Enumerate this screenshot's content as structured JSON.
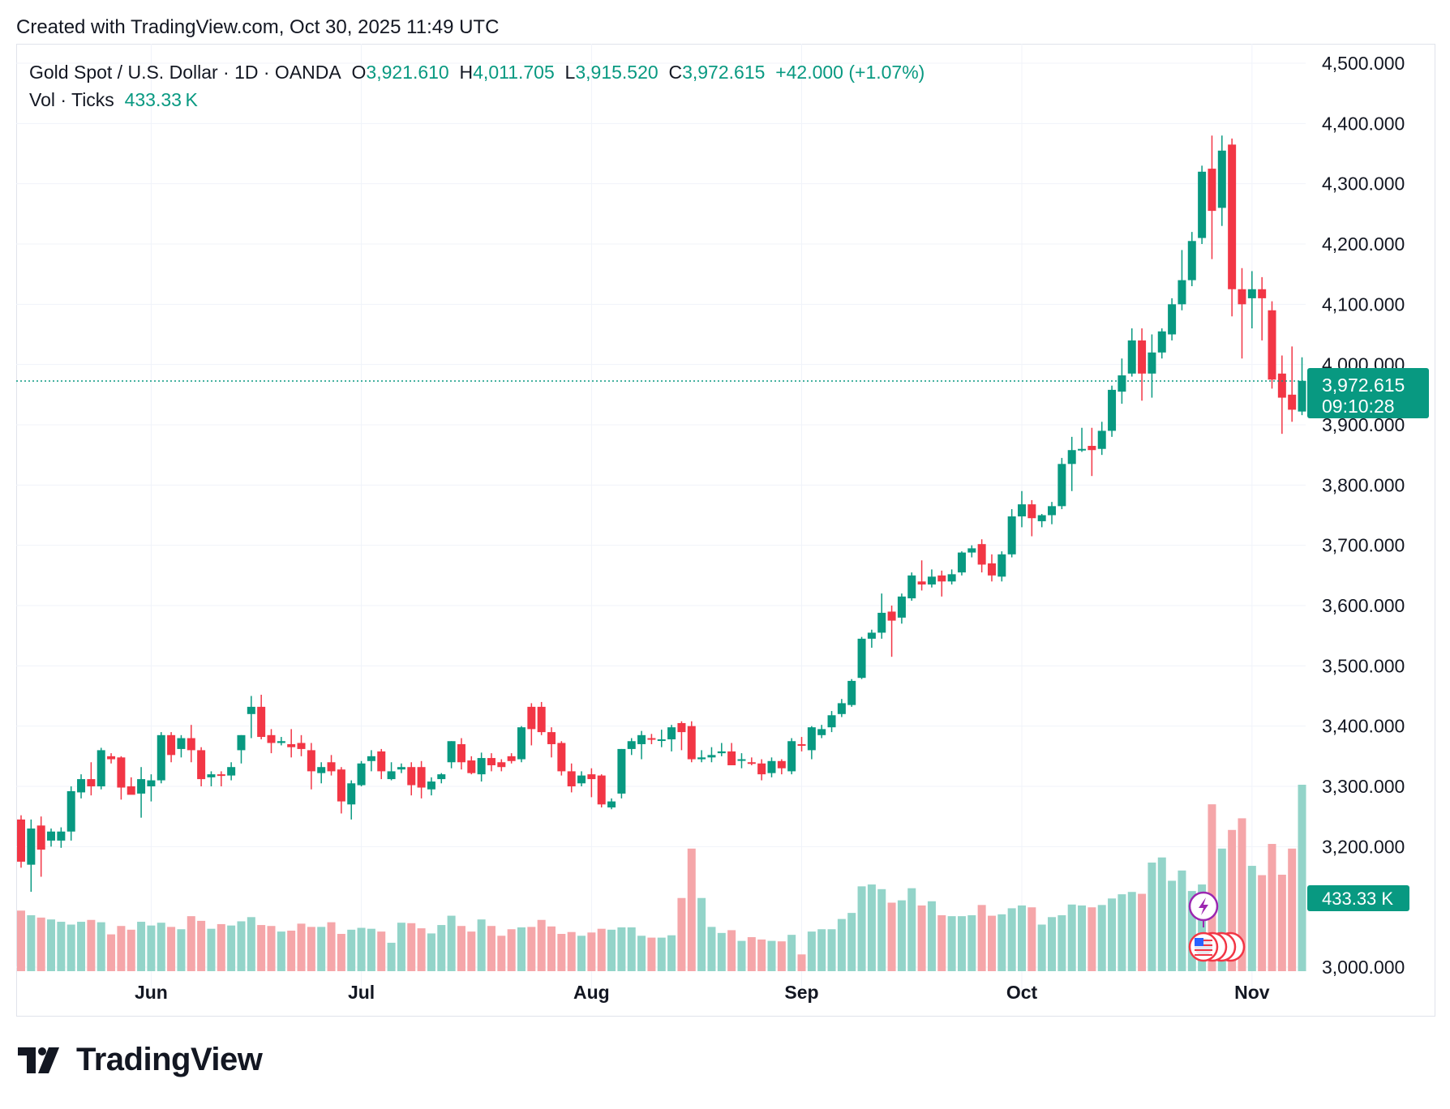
{
  "header": {
    "created_with": "Created with TradingView.com, Oct 30, 2025 11:49 UTC"
  },
  "legend": {
    "symbol": "Gold Spot / U.S. Dollar · 1D · OANDA",
    "o_label": "O",
    "o_value": "3,921.610",
    "h_label": "H",
    "h_value": "4,011.705",
    "l_label": "L",
    "l_value": "3,915.520",
    "c_label": "C",
    "c_value": "3,972.615",
    "change": "+42.000 (+1.07%)",
    "vol_label": "Vol · Ticks",
    "vol_value": "433.33 K"
  },
  "price_badge": {
    "price": "3,972.615",
    "countdown": "09:10:28"
  },
  "volume_badge": "433.33 K",
  "footer": {
    "brand": "TradingView"
  },
  "colors": {
    "up": "#089981",
    "down": "#f23645",
    "up_vol": "#93d4c9",
    "down_vol": "#f5a6a9",
    "grid": "#f0f3fa"
  },
  "chart_data": {
    "type": "candlestick",
    "title": "Gold Spot / U.S. Dollar · 1D · OANDA",
    "ylim": [
      3000,
      4500
    ],
    "y_ticks": [
      "4,500.000",
      "4,400.000",
      "4,300.000",
      "4,200.000",
      "4,100.000",
      "4,000.000",
      "3,900.000",
      "3,800.000",
      "3,700.000",
      "3,600.000",
      "3,500.000",
      "3,400.000",
      "3,300.000",
      "3,200.000",
      "3,000.000"
    ],
    "y_tick_values": [
      4500,
      4400,
      4300,
      4200,
      4100,
      4000,
      3900,
      3800,
      3700,
      3600,
      3500,
      3400,
      3300,
      3200,
      3000
    ],
    "x_labels": [
      {
        "label": "Jun",
        "index": 13
      },
      {
        "label": "Jul",
        "index": 34
      },
      {
        "label": "Aug",
        "index": 57
      },
      {
        "label": "Sep",
        "index": 78
      },
      {
        "label": "Oct",
        "index": 100
      },
      {
        "label": "Nov",
        "index": 123
      }
    ],
    "last_price": 3972.615,
    "volume_max": 400000,
    "candles": [
      {
        "o": 3245,
        "h": 3252,
        "l": 3165,
        "c": 3175,
        "v": 130000
      },
      {
        "o": 3170,
        "h": 3245,
        "l": 3125,
        "c": 3230,
        "v": 120000
      },
      {
        "o": 3235,
        "h": 3250,
        "l": 3150,
        "c": 3195,
        "v": 115000
      },
      {
        "o": 3210,
        "h": 3230,
        "l": 3200,
        "c": 3225,
        "v": 111000
      },
      {
        "o": 3210,
        "h": 3232,
        "l": 3198,
        "c": 3225,
        "v": 106000
      },
      {
        "o": 3225,
        "h": 3300,
        "l": 3210,
        "c": 3292,
        "v": 100000
      },
      {
        "o": 3290,
        "h": 3320,
        "l": 3280,
        "c": 3312,
        "v": 106000
      },
      {
        "o": 3312,
        "h": 3340,
        "l": 3285,
        "c": 3300,
        "v": 110000
      },
      {
        "o": 3300,
        "h": 3364,
        "l": 3295,
        "c": 3360,
        "v": 105000
      },
      {
        "o": 3350,
        "h": 3355,
        "l": 3338,
        "c": 3345,
        "v": 79000
      },
      {
        "o": 3348,
        "h": 3350,
        "l": 3278,
        "c": 3298,
        "v": 97000
      },
      {
        "o": 3300,
        "h": 3315,
        "l": 3290,
        "c": 3286,
        "v": 89000
      },
      {
        "o": 3288,
        "h": 3332,
        "l": 3248,
        "c": 3312,
        "v": 106000
      },
      {
        "o": 3300,
        "h": 3320,
        "l": 3275,
        "c": 3310,
        "v": 98000
      },
      {
        "o": 3310,
        "h": 3390,
        "l": 3305,
        "c": 3385,
        "v": 104000
      },
      {
        "o": 3385,
        "h": 3390,
        "l": 3340,
        "c": 3352,
        "v": 95000
      },
      {
        "o": 3362,
        "h": 3385,
        "l": 3348,
        "c": 3380,
        "v": 90000
      },
      {
        "o": 3380,
        "h": 3402,
        "l": 3340,
        "c": 3360,
        "v": 118000
      },
      {
        "o": 3360,
        "h": 3365,
        "l": 3300,
        "c": 3312,
        "v": 108000
      },
      {
        "o": 3315,
        "h": 3325,
        "l": 3300,
        "c": 3320,
        "v": 91000
      },
      {
        "o": 3320,
        "h": 3325,
        "l": 3300,
        "c": 3318,
        "v": 101000
      },
      {
        "o": 3318,
        "h": 3340,
        "l": 3310,
        "c": 3332,
        "v": 98000
      },
      {
        "o": 3360,
        "h": 3385,
        "l": 3338,
        "c": 3385,
        "v": 107000
      },
      {
        "o": 3420,
        "h": 3450,
        "l": 3380,
        "c": 3432,
        "v": 116000
      },
      {
        "o": 3432,
        "h": 3452,
        "l": 3378,
        "c": 3382,
        "v": 99000
      },
      {
        "o": 3385,
        "h": 3395,
        "l": 3355,
        "c": 3372,
        "v": 97000
      },
      {
        "o": 3372,
        "h": 3382,
        "l": 3368,
        "c": 3375,
        "v": 85000
      },
      {
        "o": 3370,
        "h": 3395,
        "l": 3348,
        "c": 3365,
        "v": 87000
      },
      {
        "o": 3372,
        "h": 3385,
        "l": 3350,
        "c": 3362,
        "v": 102000
      },
      {
        "o": 3360,
        "h": 3372,
        "l": 3295,
        "c": 3325,
        "v": 95000
      },
      {
        "o": 3322,
        "h": 3340,
        "l": 3305,
        "c": 3332,
        "v": 95000
      },
      {
        "o": 3340,
        "h": 3352,
        "l": 3318,
        "c": 3325,
        "v": 105000
      },
      {
        "o": 3328,
        "h": 3332,
        "l": 3255,
        "c": 3275,
        "v": 80000
      },
      {
        "o": 3270,
        "h": 3310,
        "l": 3245,
        "c": 3305,
        "v": 89000
      },
      {
        "o": 3302,
        "h": 3342,
        "l": 3300,
        "c": 3338,
        "v": 93000
      },
      {
        "o": 3342,
        "h": 3360,
        "l": 3325,
        "c": 3350,
        "v": 91000
      },
      {
        "o": 3358,
        "h": 3362,
        "l": 3312,
        "c": 3325,
        "v": 85000
      },
      {
        "o": 3312,
        "h": 3340,
        "l": 3310,
        "c": 3325,
        "v": 61000
      },
      {
        "o": 3328,
        "h": 3338,
        "l": 3322,
        "c": 3332,
        "v": 104000
      },
      {
        "o": 3332,
        "h": 3340,
        "l": 3285,
        "c": 3302,
        "v": 103000
      },
      {
        "o": 3332,
        "h": 3342,
        "l": 3280,
        "c": 3298,
        "v": 92000
      },
      {
        "o": 3295,
        "h": 3315,
        "l": 3285,
        "c": 3308,
        "v": 81000
      },
      {
        "o": 3312,
        "h": 3322,
        "l": 3305,
        "c": 3320,
        "v": 99000
      },
      {
        "o": 3340,
        "h": 3375,
        "l": 3330,
        "c": 3375,
        "v": 119000
      },
      {
        "o": 3370,
        "h": 3380,
        "l": 3328,
        "c": 3340,
        "v": 97000
      },
      {
        "o": 3343,
        "h": 3350,
        "l": 3320,
        "c": 3322,
        "v": 85000
      },
      {
        "o": 3320,
        "h": 3356,
        "l": 3308,
        "c": 3347,
        "v": 111000
      },
      {
        "o": 3347,
        "h": 3355,
        "l": 3325,
        "c": 3335,
        "v": 97000
      },
      {
        "o": 3340,
        "h": 3345,
        "l": 3325,
        "c": 3332,
        "v": 76000
      },
      {
        "o": 3350,
        "h": 3355,
        "l": 3338,
        "c": 3342,
        "v": 90000
      },
      {
        "o": 3345,
        "h": 3400,
        "l": 3340,
        "c": 3398,
        "v": 94000
      },
      {
        "o": 3432,
        "h": 3438,
        "l": 3368,
        "c": 3395,
        "v": 95000
      },
      {
        "o": 3432,
        "h": 3440,
        "l": 3385,
        "c": 3390,
        "v": 110000
      },
      {
        "o": 3390,
        "h": 3398,
        "l": 3348,
        "c": 3370,
        "v": 96000
      },
      {
        "o": 3372,
        "h": 3375,
        "l": 3318,
        "c": 3325,
        "v": 80000
      },
      {
        "o": 3325,
        "h": 3338,
        "l": 3290,
        "c": 3300,
        "v": 84000
      },
      {
        "o": 3305,
        "h": 3325,
        "l": 3300,
        "c": 3318,
        "v": 76000
      },
      {
        "o": 3320,
        "h": 3330,
        "l": 3282,
        "c": 3312,
        "v": 83000
      },
      {
        "o": 3318,
        "h": 3320,
        "l": 3265,
        "c": 3270,
        "v": 91000
      },
      {
        "o": 3265,
        "h": 3280,
        "l": 3262,
        "c": 3275,
        "v": 89000
      },
      {
        "o": 3288,
        "h": 3362,
        "l": 3280,
        "c": 3362,
        "v": 94000
      },
      {
        "o": 3362,
        "h": 3380,
        "l": 3352,
        "c": 3375,
        "v": 94000
      },
      {
        "o": 3370,
        "h": 3392,
        "l": 3345,
        "c": 3385,
        "v": 76000
      },
      {
        "o": 3380,
        "h": 3387,
        "l": 3370,
        "c": 3378,
        "v": 72000
      },
      {
        "o": 3378,
        "h": 3394,
        "l": 3365,
        "c": 3378,
        "v": 72000
      },
      {
        "o": 3378,
        "h": 3402,
        "l": 3358,
        "c": 3398,
        "v": 77000
      },
      {
        "o": 3405,
        "h": 3408,
        "l": 3360,
        "c": 3390,
        "v": 157000
      },
      {
        "o": 3400,
        "h": 3408,
        "l": 3340,
        "c": 3345,
        "v": 263000
      },
      {
        "o": 3345,
        "h": 3360,
        "l": 3340,
        "c": 3348,
        "v": 157000
      },
      {
        "o": 3348,
        "h": 3365,
        "l": 3340,
        "c": 3352,
        "v": 95000
      },
      {
        "o": 3355,
        "h": 3372,
        "l": 3350,
        "c": 3358,
        "v": 82000
      },
      {
        "o": 3358,
        "h": 3372,
        "l": 3335,
        "c": 3335,
        "v": 88000
      },
      {
        "o": 3345,
        "h": 3355,
        "l": 3330,
        "c": 3345,
        "v": 65000
      },
      {
        "o": 3340,
        "h": 3348,
        "l": 3335,
        "c": 3338,
        "v": 73000
      },
      {
        "o": 3338,
        "h": 3345,
        "l": 3310,
        "c": 3320,
        "v": 68000
      },
      {
        "o": 3322,
        "h": 3348,
        "l": 3315,
        "c": 3342,
        "v": 65000
      },
      {
        "o": 3342,
        "h": 3345,
        "l": 3320,
        "c": 3330,
        "v": 64000
      },
      {
        "o": 3325,
        "h": 3380,
        "l": 3320,
        "c": 3375,
        "v": 78000
      },
      {
        "o": 3370,
        "h": 3382,
        "l": 3358,
        "c": 3368,
        "v": 36000
      },
      {
        "o": 3360,
        "h": 3400,
        "l": 3345,
        "c": 3398,
        "v": 85000
      },
      {
        "o": 3385,
        "h": 3402,
        "l": 3380,
        "c": 3395,
        "v": 90000
      },
      {
        "o": 3398,
        "h": 3425,
        "l": 3390,
        "c": 3418,
        "v": 90000
      },
      {
        "o": 3420,
        "h": 3445,
        "l": 3415,
        "c": 3438,
        "v": 112000
      },
      {
        "o": 3435,
        "h": 3478,
        "l": 3432,
        "c": 3475,
        "v": 125000
      },
      {
        "o": 3480,
        "h": 3548,
        "l": 3478,
        "c": 3545,
        "v": 182000
      },
      {
        "o": 3545,
        "h": 3560,
        "l": 3530,
        "c": 3555,
        "v": 186000
      },
      {
        "o": 3555,
        "h": 3620,
        "l": 3545,
        "c": 3588,
        "v": 176000
      },
      {
        "o": 3590,
        "h": 3600,
        "l": 3515,
        "c": 3575,
        "v": 147000
      },
      {
        "o": 3580,
        "h": 3620,
        "l": 3570,
        "c": 3615,
        "v": 152000
      },
      {
        "o": 3612,
        "h": 3655,
        "l": 3608,
        "c": 3650,
        "v": 178000
      },
      {
        "o": 3640,
        "h": 3675,
        "l": 3625,
        "c": 3635,
        "v": 141000
      },
      {
        "o": 3635,
        "h": 3660,
        "l": 3630,
        "c": 3648,
        "v": 150000
      },
      {
        "o": 3650,
        "h": 3658,
        "l": 3615,
        "c": 3640,
        "v": 120000
      },
      {
        "o": 3640,
        "h": 3660,
        "l": 3635,
        "c": 3652,
        "v": 118000
      },
      {
        "o": 3655,
        "h": 3690,
        "l": 3650,
        "c": 3688,
        "v": 118000
      },
      {
        "o": 3688,
        "h": 3700,
        "l": 3680,
        "c": 3695,
        "v": 120000
      },
      {
        "o": 3702,
        "h": 3710,
        "l": 3655,
        "c": 3668,
        "v": 142000
      },
      {
        "o": 3670,
        "h": 3685,
        "l": 3640,
        "c": 3650,
        "v": 119000
      },
      {
        "o": 3648,
        "h": 3690,
        "l": 3640,
        "c": 3685,
        "v": 122000
      },
      {
        "o": 3685,
        "h": 3760,
        "l": 3680,
        "c": 3748,
        "v": 135000
      },
      {
        "o": 3748,
        "h": 3790,
        "l": 3730,
        "c": 3768,
        "v": 141000
      },
      {
        "o": 3768,
        "h": 3775,
        "l": 3715,
        "c": 3745,
        "v": 137000
      },
      {
        "o": 3740,
        "h": 3752,
        "l": 3730,
        "c": 3750,
        "v": 100000
      },
      {
        "o": 3750,
        "h": 3772,
        "l": 3735,
        "c": 3765,
        "v": 116000
      },
      {
        "o": 3765,
        "h": 3845,
        "l": 3760,
        "c": 3835,
        "v": 120000
      },
      {
        "o": 3835,
        "h": 3880,
        "l": 3790,
        "c": 3858,
        "v": 143000
      },
      {
        "o": 3858,
        "h": 3895,
        "l": 3855,
        "c": 3860,
        "v": 141000
      },
      {
        "o": 3865,
        "h": 3895,
        "l": 3815,
        "c": 3858,
        "v": 137000
      },
      {
        "o": 3860,
        "h": 3905,
        "l": 3850,
        "c": 3890,
        "v": 142000
      },
      {
        "o": 3890,
        "h": 3965,
        "l": 3880,
        "c": 3958,
        "v": 156000
      },
      {
        "o": 3955,
        "h": 4010,
        "l": 3935,
        "c": 3982,
        "v": 165000
      },
      {
        "o": 3985,
        "h": 4060,
        "l": 3980,
        "c": 4040,
        "v": 170000
      },
      {
        "o": 4040,
        "h": 4060,
        "l": 3940,
        "c": 3985,
        "v": 166000
      },
      {
        "o": 3985,
        "h": 4050,
        "l": 3945,
        "c": 4020,
        "v": 233000
      },
      {
        "o": 4020,
        "h": 4060,
        "l": 4010,
        "c": 4055,
        "v": 244000
      },
      {
        "o": 4050,
        "h": 4110,
        "l": 4040,
        "c": 4100,
        "v": 194000
      },
      {
        "o": 4100,
        "h": 4190,
        "l": 4090,
        "c": 4140,
        "v": 216000
      },
      {
        "o": 4140,
        "h": 4220,
        "l": 4130,
        "c": 4205,
        "v": 172000
      },
      {
        "o": 4210,
        "h": 4330,
        "l": 4200,
        "c": 4320,
        "v": 186000
      },
      {
        "o": 4325,
        "h": 4380,
        "l": 4175,
        "c": 4255,
        "v": 358000
      },
      {
        "o": 4260,
        "h": 4380,
        "l": 4230,
        "c": 4355,
        "v": 263000
      },
      {
        "o": 4365,
        "h": 4375,
        "l": 4080,
        "c": 4125,
        "v": 303000
      },
      {
        "o": 4125,
        "h": 4160,
        "l": 4010,
        "c": 4100,
        "v": 328000
      },
      {
        "o": 4110,
        "h": 4155,
        "l": 4060,
        "c": 4125,
        "v": 226000
      },
      {
        "o": 4125,
        "h": 4145,
        "l": 4040,
        "c": 4110,
        "v": 206000
      },
      {
        "o": 4090,
        "h": 4105,
        "l": 3960,
        "c": 3975,
        "v": 273000
      },
      {
        "o": 3985,
        "h": 4015,
        "l": 3885,
        "c": 3945,
        "v": 207000
      },
      {
        "o": 3950,
        "h": 4030,
        "l": 3905,
        "c": 3925,
        "v": 263000
      },
      {
        "o": 3922,
        "h": 4012,
        "l": 3916,
        "c": 3973,
        "v": 433330
      }
    ]
  }
}
